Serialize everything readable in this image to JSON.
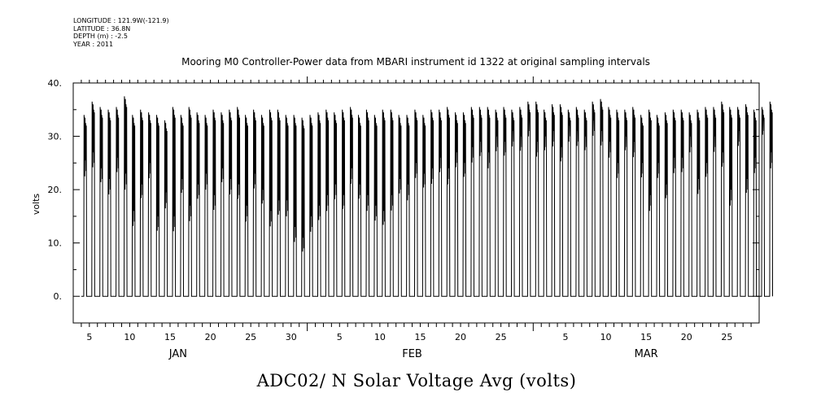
{
  "header": {
    "longitude": "LONGITUDE : 121.9W(-121.9)",
    "latitude": "LATITUDE : 36.8N",
    "depth": "DEPTH (m) : -2.5",
    "year": "YEAR : 2011"
  },
  "chart_data": {
    "type": "line",
    "title": "Mooring M0 Controller-Power data from MBARI instrument id 1322 at original sampling intervals",
    "xlabel": "ADC02/ N Solar Voltage Avg (volts)",
    "ylabel": "volts",
    "ylim": [
      -5,
      40
    ],
    "yticks": [
      0,
      10,
      20,
      30,
      40
    ],
    "yticklabels": [
      "0.",
      "10.",
      "20.",
      "30.",
      "40."
    ],
    "xlim": [
      "2011-01-03",
      "2011-03-29"
    ],
    "xticks": [
      {
        "date": "2011-01-05",
        "label": "5"
      },
      {
        "date": "2011-01-10",
        "label": "10"
      },
      {
        "date": "2011-01-15",
        "label": "15"
      },
      {
        "date": "2011-01-20",
        "label": "20"
      },
      {
        "date": "2011-01-25",
        "label": "25"
      },
      {
        "date": "2011-01-30",
        "label": "30"
      },
      {
        "date": "2011-02-05",
        "label": "5"
      },
      {
        "date": "2011-02-10",
        "label": "10"
      },
      {
        "date": "2011-02-15",
        "label": "15"
      },
      {
        "date": "2011-02-20",
        "label": "20"
      },
      {
        "date": "2011-02-25",
        "label": "25"
      },
      {
        "date": "2011-03-05",
        "label": "5"
      },
      {
        "date": "2011-03-10",
        "label": "10"
      },
      {
        "date": "2011-03-15",
        "label": "15"
      },
      {
        "date": "2011-03-20",
        "label": "20"
      },
      {
        "date": "2011-03-25",
        "label": "25"
      }
    ],
    "months": [
      {
        "label": "JAN",
        "date": "2011-01-16"
      },
      {
        "label": "FEB",
        "date": "2011-02-14"
      },
      {
        "label": "MAR",
        "date": "2011-03-15"
      }
    ],
    "series": [
      {
        "start": "2011-01-04",
        "daily_peaks": [
          34.0,
          36.5,
          35.5,
          35.0,
          35.5,
          37.5,
          34.0,
          35.0,
          34.5,
          34.0,
          33.0,
          35.5,
          34.0,
          35.5,
          34.5,
          34.0,
          35.0,
          34.5,
          35.0,
          35.5,
          34.0,
          35.0,
          34.0,
          35.0,
          35.0,
          34.0,
          34.0,
          33.5,
          34.0,
          34.5,
          35.0,
          34.5,
          35.0,
          35.5,
          34.0,
          35.0,
          34.0,
          35.0,
          35.0,
          34.0,
          34.0,
          35.0,
          34.0,
          35.0,
          35.0,
          35.5,
          34.5,
          34.5,
          35.5,
          35.5,
          35.5,
          35.0,
          35.5,
          35.0,
          35.5,
          36.5,
          36.5,
          35.0,
          36.0,
          36.0,
          35.0,
          35.5,
          35.0,
          36.5,
          37.0,
          35.5,
          35.0,
          35.0,
          35.5,
          34.0,
          35.0,
          34.0,
          34.5,
          35.0,
          35.0,
          34.5,
          35.0,
          35.5,
          35.5,
          36.5,
          35.5,
          35.5,
          36.0,
          35.0,
          35.5,
          36.5
        ],
        "daily_troughs": [
          0,
          0,
          0,
          0,
          0,
          0,
          0,
          0,
          0,
          0,
          0,
          0,
          0,
          0,
          0,
          0,
          0,
          0,
          0,
          0,
          0,
          0,
          0,
          0,
          0,
          0,
          0,
          0,
          0,
          0,
          0,
          0,
          0,
          0,
          0,
          0,
          0,
          0,
          0,
          0,
          0,
          0,
          0,
          0,
          0,
          0,
          0,
          0,
          0,
          0,
          0,
          0,
          0,
          0,
          0,
          0,
          0,
          0,
          0,
          0,
          0,
          0,
          0,
          0,
          0,
          0,
          0,
          0,
          0,
          0,
          0,
          0,
          0,
          0,
          0,
          0,
          0,
          0,
          0,
          0,
          0,
          0,
          0,
          0,
          0,
          0
        ],
        "daily_dip_lows": [
          22.5,
          24.0,
          21.0,
          19.0,
          23.0,
          20.0,
          13.0,
          18.0,
          22.0,
          12.0,
          16.5,
          12.0,
          19.0,
          14.0,
          18.0,
          20.0,
          16.0,
          21.0,
          19.0,
          18.0,
          14.0,
          20.0,
          17.0,
          13.0,
          15.0,
          15.0,
          10.0,
          8.0,
          12.0,
          14.0,
          16.0,
          18.0,
          16.0,
          21.0,
          18.0,
          16.0,
          14.0,
          13.0,
          16.0,
          19.0,
          18.0,
          22.0,
          20.0,
          21.0,
          23.0,
          21.0,
          24.0,
          22.0,
          25.0,
          26.0,
          24.0,
          27.0,
          26.0,
          28.0,
          27.0,
          30.0,
          26.0,
          27.0,
          28.0,
          25.0,
          29.0,
          28.0,
          27.0,
          30.0,
          28.0,
          26.0,
          22.0,
          27.0,
          26.0,
          22.0,
          16.0,
          22.0,
          18.0,
          23.0,
          23.0,
          27.0,
          19.0,
          22.0,
          27.0,
          24.0,
          17.0,
          28.0,
          19.0,
          23.0,
          30.0,
          24.0
        ]
      }
    ]
  }
}
